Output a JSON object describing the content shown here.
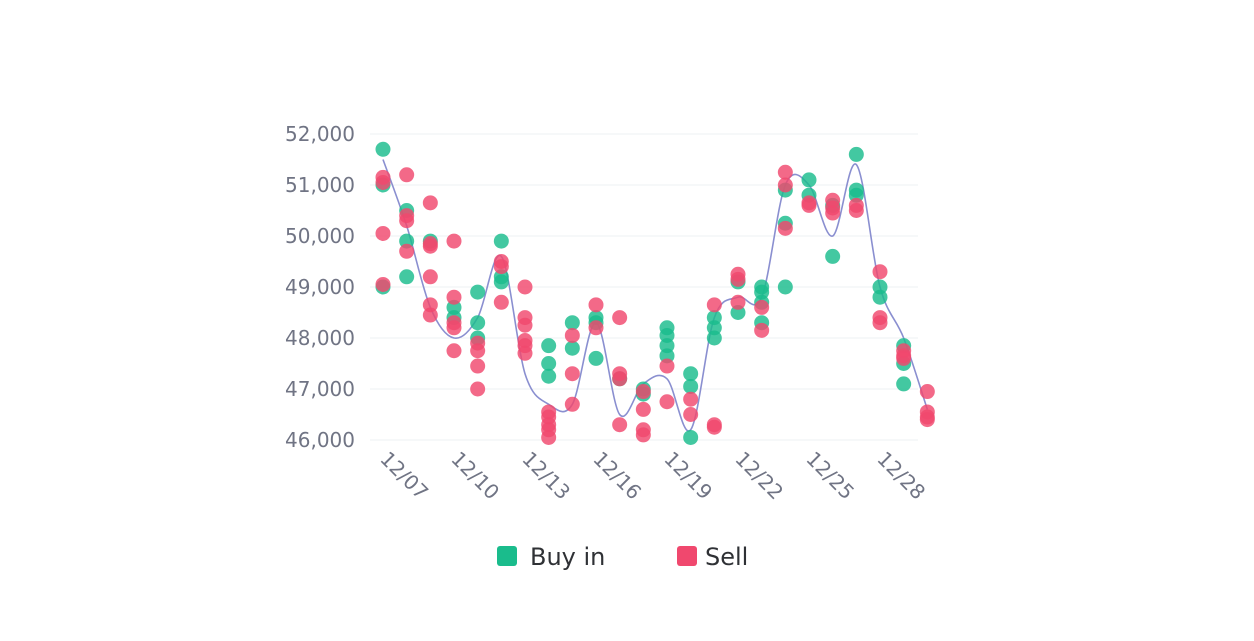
{
  "chart_data": {
    "type": "scatter",
    "x_tick_labels": [
      "12/07",
      "12/10",
      "12/13",
      "12/16",
      "12/19",
      "12/22",
      "12/25",
      "12/28"
    ],
    "dates": [
      "12/07",
      "12/08",
      "12/09",
      "12/10",
      "12/11",
      "12/12",
      "12/13",
      "12/14",
      "12/15",
      "12/16",
      "12/17",
      "12/18",
      "12/19",
      "12/20",
      "12/21",
      "12/22",
      "12/23",
      "12/24",
      "12/25",
      "12/26",
      "12/27",
      "12/28",
      "12/29"
    ],
    "ylim": [
      46000,
      52000
    ],
    "y_ticks": [
      46000,
      47000,
      48000,
      49000,
      50000,
      51000,
      52000
    ],
    "y_tick_labels": [
      "46,000",
      "47,000",
      "48,000",
      "49,000",
      "50,000",
      "51,000",
      "52,000"
    ],
    "grid": true,
    "legend_position": "bottom",
    "colors": {
      "buy": "#1abc8c",
      "sell": "#f0486e",
      "trend": "#8a8fd0",
      "tick_text": "#707484"
    },
    "series": [
      {
        "name": "Buy in",
        "points": [
          [
            "12/07",
            51700
          ],
          [
            "12/07",
            51000
          ],
          [
            "12/07",
            49000
          ],
          [
            "12/08",
            50500
          ],
          [
            "12/08",
            49900
          ],
          [
            "12/08",
            49200
          ],
          [
            "12/09",
            49900
          ],
          [
            "12/10",
            48600
          ],
          [
            "12/10",
            48400
          ],
          [
            "12/11",
            48900
          ],
          [
            "12/11",
            48300
          ],
          [
            "12/11",
            48000
          ],
          [
            "12/12",
            49900
          ],
          [
            "12/12",
            49200
          ],
          [
            "12/12",
            49100
          ],
          [
            "12/14",
            47850
          ],
          [
            "12/14",
            47500
          ],
          [
            "12/14",
            47250
          ],
          [
            "12/15",
            48300
          ],
          [
            "12/15",
            47800
          ],
          [
            "12/16",
            48400
          ],
          [
            "12/16",
            48300
          ],
          [
            "12/16",
            47600
          ],
          [
            "12/17",
            47200
          ],
          [
            "12/18",
            47000
          ],
          [
            "12/18",
            46900
          ],
          [
            "12/19",
            48200
          ],
          [
            "12/19",
            48050
          ],
          [
            "12/19",
            47850
          ],
          [
            "12/19",
            47650
          ],
          [
            "12/20",
            47300
          ],
          [
            "12/20",
            47050
          ],
          [
            "12/20",
            46050
          ],
          [
            "12/21",
            48400
          ],
          [
            "12/21",
            48200
          ],
          [
            "12/21",
            48000
          ],
          [
            "12/22",
            49100
          ],
          [
            "12/22",
            48500
          ],
          [
            "12/23",
            49000
          ],
          [
            "12/23",
            48900
          ],
          [
            "12/23",
            48700
          ],
          [
            "12/23",
            48300
          ],
          [
            "12/24",
            50900
          ],
          [
            "12/24",
            50250
          ],
          [
            "12/24",
            49000
          ],
          [
            "12/25",
            51100
          ],
          [
            "12/25",
            50800
          ],
          [
            "12/26",
            50600
          ],
          [
            "12/26",
            49600
          ],
          [
            "12/27",
            51600
          ],
          [
            "12/27",
            50900
          ],
          [
            "12/27",
            50800
          ],
          [
            "12/28",
            49000
          ],
          [
            "12/28",
            48800
          ],
          [
            "12/29",
            47850
          ],
          [
            "12/29",
            47500
          ],
          [
            "12/29",
            47100
          ]
        ]
      },
      {
        "name": "Sell",
        "points": [
          [
            "12/07",
            51150
          ],
          [
            "12/07",
            51050
          ],
          [
            "12/07",
            50050
          ],
          [
            "12/07",
            49050
          ],
          [
            "12/08",
            51200
          ],
          [
            "12/08",
            50400
          ],
          [
            "12/08",
            50300
          ],
          [
            "12/08",
            49700
          ],
          [
            "12/09",
            50650
          ],
          [
            "12/09",
            49850
          ],
          [
            "12/09",
            49800
          ],
          [
            "12/09",
            49200
          ],
          [
            "12/09",
            48650
          ],
          [
            "12/09",
            48450
          ],
          [
            "12/10",
            49900
          ],
          [
            "12/10",
            48800
          ],
          [
            "12/10",
            48300
          ],
          [
            "12/10",
            48200
          ],
          [
            "12/10",
            47750
          ],
          [
            "12/11",
            47900
          ],
          [
            "12/11",
            47750
          ],
          [
            "12/11",
            47450
          ],
          [
            "12/11",
            47000
          ],
          [
            "12/12",
            49500
          ],
          [
            "12/12",
            49400
          ],
          [
            "12/12",
            48700
          ],
          [
            "12/13",
            49000
          ],
          [
            "12/13",
            48400
          ],
          [
            "12/13",
            48250
          ],
          [
            "12/13",
            47950
          ],
          [
            "12/13",
            47850
          ],
          [
            "12/13",
            47700
          ],
          [
            "12/14",
            46550
          ],
          [
            "12/14",
            46450
          ],
          [
            "12/14",
            46300
          ],
          [
            "12/14",
            46200
          ],
          [
            "12/14",
            46050
          ],
          [
            "12/15",
            48050
          ],
          [
            "12/15",
            47300
          ],
          [
            "12/15",
            46700
          ],
          [
            "12/16",
            48650
          ],
          [
            "12/16",
            48200
          ],
          [
            "12/17",
            48400
          ],
          [
            "12/17",
            47300
          ],
          [
            "12/17",
            47200
          ],
          [
            "12/17",
            46300
          ],
          [
            "12/18",
            46950
          ],
          [
            "12/18",
            46600
          ],
          [
            "12/18",
            46200
          ],
          [
            "12/18",
            46100
          ],
          [
            "12/19",
            47450
          ],
          [
            "12/19",
            46750
          ],
          [
            "12/20",
            46800
          ],
          [
            "12/20",
            46500
          ],
          [
            "12/21",
            48650
          ],
          [
            "12/21",
            46300
          ],
          [
            "12/21",
            46250
          ],
          [
            "12/22",
            49250
          ],
          [
            "12/22",
            49150
          ],
          [
            "12/22",
            48700
          ],
          [
            "12/23",
            48600
          ],
          [
            "12/23",
            48150
          ],
          [
            "12/24",
            51250
          ],
          [
            "12/24",
            51000
          ],
          [
            "12/24",
            50150
          ],
          [
            "12/25",
            50650
          ],
          [
            "12/25",
            50600
          ],
          [
            "12/26",
            50700
          ],
          [
            "12/26",
            50550
          ],
          [
            "12/26",
            50450
          ],
          [
            "12/27",
            50600
          ],
          [
            "12/27",
            50500
          ],
          [
            "12/28",
            49300
          ],
          [
            "12/28",
            48400
          ],
          [
            "12/28",
            48300
          ],
          [
            "12/29",
            47750
          ],
          [
            "12/29",
            47650
          ],
          [
            "12/29",
            47600
          ],
          [
            "12/30",
            46950
          ],
          [
            "12/30",
            46550
          ],
          [
            "12/30",
            46450
          ],
          [
            "12/30",
            46400
          ]
        ]
      }
    ],
    "trend_line": [
      [
        "12/07",
        51500
      ],
      [
        "12/08",
        50200
      ],
      [
        "12/09",
        48600
      ],
      [
        "12/10",
        48000
      ],
      [
        "12/11",
        48400
      ],
      [
        "12/12",
        49600
      ],
      [
        "12/13",
        47300
      ],
      [
        "12/14",
        46700
      ],
      [
        "12/15",
        46700
      ],
      [
        "12/16",
        48300
      ],
      [
        "12/17",
        46500
      ],
      [
        "12/18",
        47100
      ],
      [
        "12/19",
        47200
      ],
      [
        "12/20",
        46200
      ],
      [
        "12/21",
        48400
      ],
      [
        "12/22",
        48800
      ],
      [
        "12/23",
        48800
      ],
      [
        "12/24",
        51000
      ],
      [
        "12/25",
        51000
      ],
      [
        "12/26",
        50000
      ],
      [
        "12/27",
        51400
      ],
      [
        "12/28",
        49000
      ],
      [
        "12/29",
        48000
      ],
      [
        "12/30",
        46600
      ]
    ]
  }
}
